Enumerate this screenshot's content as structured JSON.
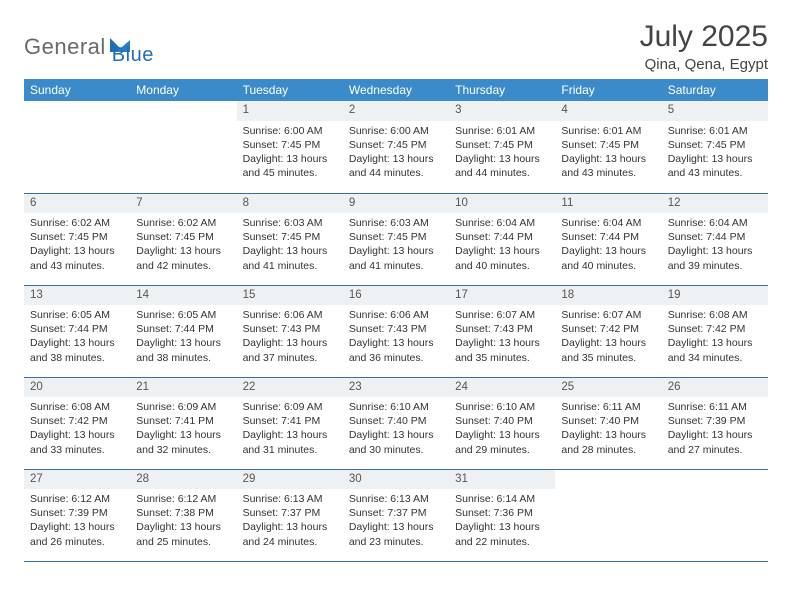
{
  "logo": {
    "text1": "General",
    "text2": "Blue"
  },
  "title": "July 2025",
  "location": "Qina, Qena, Egypt",
  "colors": {
    "header_bg": "#3b8bca",
    "header_text": "#ffffff",
    "daynum_bg": "#eef1f3",
    "row_border": "#3b6fa0",
    "text": "#333333",
    "logo_gray": "#6a6a6a",
    "logo_blue": "#1e6fb8"
  },
  "day_headers": [
    "Sunday",
    "Monday",
    "Tuesday",
    "Wednesday",
    "Thursday",
    "Friday",
    "Saturday"
  ],
  "weeks": [
    [
      null,
      null,
      {
        "n": "1",
        "sr": "6:00 AM",
        "ss": "7:45 PM",
        "dl": "13 hours and 45 minutes."
      },
      {
        "n": "2",
        "sr": "6:00 AM",
        "ss": "7:45 PM",
        "dl": "13 hours and 44 minutes."
      },
      {
        "n": "3",
        "sr": "6:01 AM",
        "ss": "7:45 PM",
        "dl": "13 hours and 44 minutes."
      },
      {
        "n": "4",
        "sr": "6:01 AM",
        "ss": "7:45 PM",
        "dl": "13 hours and 43 minutes."
      },
      {
        "n": "5",
        "sr": "6:01 AM",
        "ss": "7:45 PM",
        "dl": "13 hours and 43 minutes."
      }
    ],
    [
      {
        "n": "6",
        "sr": "6:02 AM",
        "ss": "7:45 PM",
        "dl": "13 hours and 43 minutes."
      },
      {
        "n": "7",
        "sr": "6:02 AM",
        "ss": "7:45 PM",
        "dl": "13 hours and 42 minutes."
      },
      {
        "n": "8",
        "sr": "6:03 AM",
        "ss": "7:45 PM",
        "dl": "13 hours and 41 minutes."
      },
      {
        "n": "9",
        "sr": "6:03 AM",
        "ss": "7:45 PM",
        "dl": "13 hours and 41 minutes."
      },
      {
        "n": "10",
        "sr": "6:04 AM",
        "ss": "7:44 PM",
        "dl": "13 hours and 40 minutes."
      },
      {
        "n": "11",
        "sr": "6:04 AM",
        "ss": "7:44 PM",
        "dl": "13 hours and 40 minutes."
      },
      {
        "n": "12",
        "sr": "6:04 AM",
        "ss": "7:44 PM",
        "dl": "13 hours and 39 minutes."
      }
    ],
    [
      {
        "n": "13",
        "sr": "6:05 AM",
        "ss": "7:44 PM",
        "dl": "13 hours and 38 minutes."
      },
      {
        "n": "14",
        "sr": "6:05 AM",
        "ss": "7:44 PM",
        "dl": "13 hours and 38 minutes."
      },
      {
        "n": "15",
        "sr": "6:06 AM",
        "ss": "7:43 PM",
        "dl": "13 hours and 37 minutes."
      },
      {
        "n": "16",
        "sr": "6:06 AM",
        "ss": "7:43 PM",
        "dl": "13 hours and 36 minutes."
      },
      {
        "n": "17",
        "sr": "6:07 AM",
        "ss": "7:43 PM",
        "dl": "13 hours and 35 minutes."
      },
      {
        "n": "18",
        "sr": "6:07 AM",
        "ss": "7:42 PM",
        "dl": "13 hours and 35 minutes."
      },
      {
        "n": "19",
        "sr": "6:08 AM",
        "ss": "7:42 PM",
        "dl": "13 hours and 34 minutes."
      }
    ],
    [
      {
        "n": "20",
        "sr": "6:08 AM",
        "ss": "7:42 PM",
        "dl": "13 hours and 33 minutes."
      },
      {
        "n": "21",
        "sr": "6:09 AM",
        "ss": "7:41 PM",
        "dl": "13 hours and 32 minutes."
      },
      {
        "n": "22",
        "sr": "6:09 AM",
        "ss": "7:41 PM",
        "dl": "13 hours and 31 minutes."
      },
      {
        "n": "23",
        "sr": "6:10 AM",
        "ss": "7:40 PM",
        "dl": "13 hours and 30 minutes."
      },
      {
        "n": "24",
        "sr": "6:10 AM",
        "ss": "7:40 PM",
        "dl": "13 hours and 29 minutes."
      },
      {
        "n": "25",
        "sr": "6:11 AM",
        "ss": "7:40 PM",
        "dl": "13 hours and 28 minutes."
      },
      {
        "n": "26",
        "sr": "6:11 AM",
        "ss": "7:39 PM",
        "dl": "13 hours and 27 minutes."
      }
    ],
    [
      {
        "n": "27",
        "sr": "6:12 AM",
        "ss": "7:39 PM",
        "dl": "13 hours and 26 minutes."
      },
      {
        "n": "28",
        "sr": "6:12 AM",
        "ss": "7:38 PM",
        "dl": "13 hours and 25 minutes."
      },
      {
        "n": "29",
        "sr": "6:13 AM",
        "ss": "7:37 PM",
        "dl": "13 hours and 24 minutes."
      },
      {
        "n": "30",
        "sr": "6:13 AM",
        "ss": "7:37 PM",
        "dl": "13 hours and 23 minutes."
      },
      {
        "n": "31",
        "sr": "6:14 AM",
        "ss": "7:36 PM",
        "dl": "13 hours and 22 minutes."
      },
      null,
      null
    ]
  ],
  "labels": {
    "sunrise": "Sunrise: ",
    "sunset": "Sunset: ",
    "daylight": "Daylight: "
  }
}
